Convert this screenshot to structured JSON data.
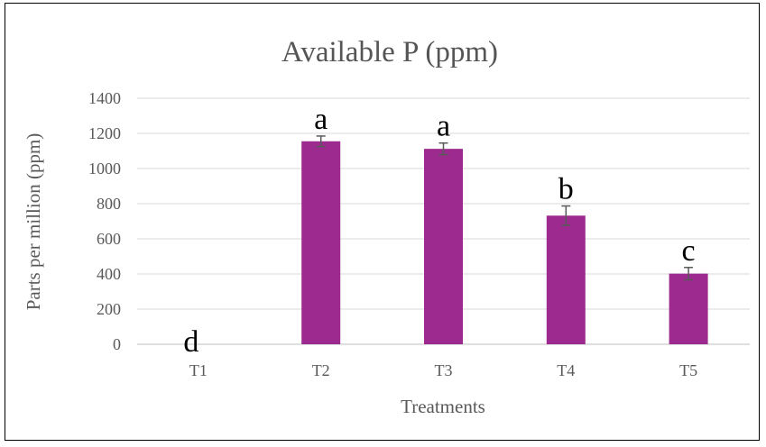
{
  "chart_data": {
    "type": "bar",
    "title": "Available P (ppm)",
    "xlabel": "Treatments",
    "ylabel": "Parts per million (ppm)",
    "ylim": [
      0,
      1400
    ],
    "yticks": [
      0,
      200,
      400,
      600,
      800,
      1000,
      1200,
      1400
    ],
    "categories": [
      "T1",
      "T2",
      "T3",
      "T4",
      "T5"
    ],
    "values": [
      0,
      1155,
      1112,
      732,
      402
    ],
    "errors": [
      0,
      30,
      33,
      55,
      35
    ],
    "significance_letters": [
      "d",
      "a",
      "a",
      "b",
      "c"
    ],
    "bar_color": "#9c2a8f",
    "grid": true,
    "legend": "none"
  }
}
